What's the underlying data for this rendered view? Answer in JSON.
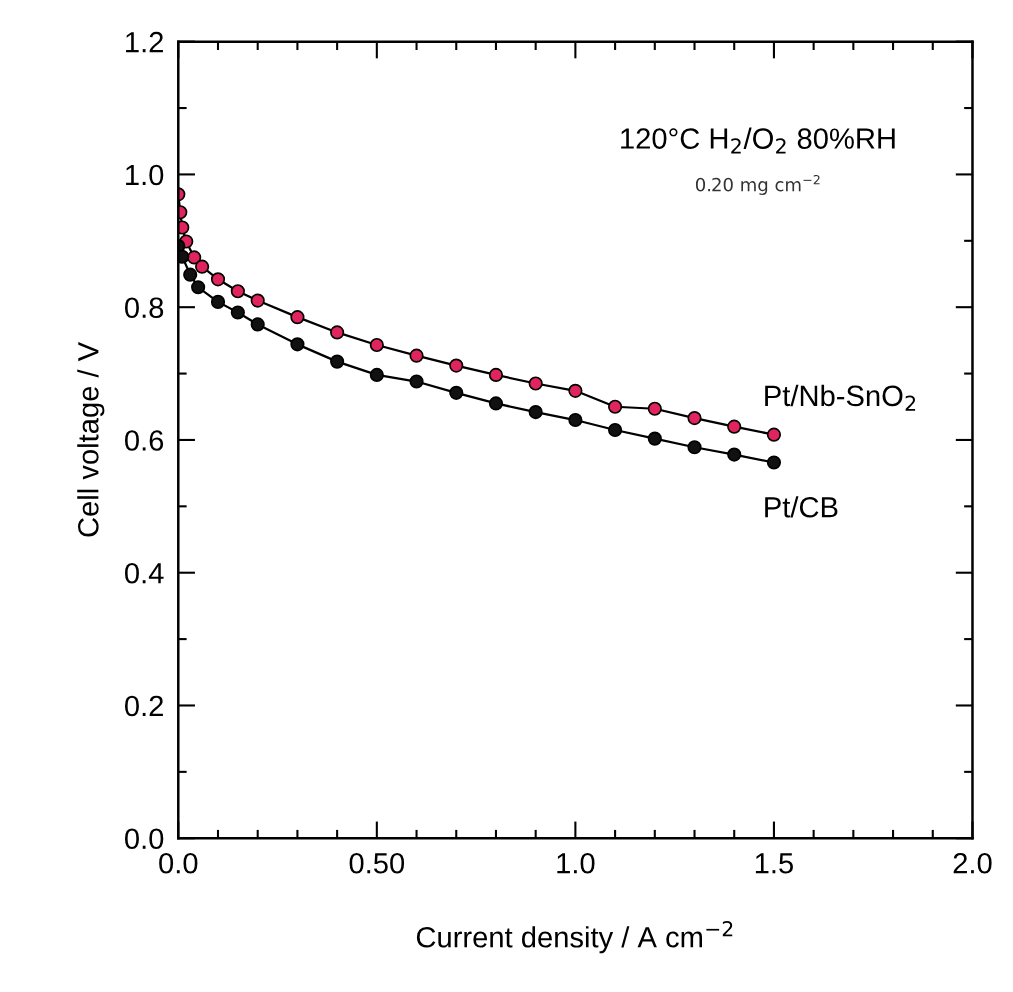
{
  "chart_data": {
    "type": "line",
    "xlabel": "Current density / A cm$^{−2}$",
    "ylabel": "Cell voltage / V",
    "xlim": [
      0,
      2.0
    ],
    "ylim": [
      0,
      1.2
    ],
    "xticks": [
      {
        "value": 0,
        "label": "0.0"
      },
      {
        "value": 0.5,
        "label": "0.50"
      },
      {
        "value": 1.0,
        "label": "1.0"
      },
      {
        "value": 1.5,
        "label": "1.5"
      },
      {
        "value": 2.0,
        "label": "2.0"
      }
    ],
    "yticks": [
      {
        "value": 0,
        "label": "0.0"
      },
      {
        "value": 0.2,
        "label": "0.2"
      },
      {
        "value": 0.4,
        "label": "0.4"
      },
      {
        "value": 0.6,
        "label": "0.6"
      },
      {
        "value": 0.8,
        "label": "0.8"
      },
      {
        "value": 1.0,
        "label": "1.0"
      },
      {
        "value": 1.2,
        "label": "1.2"
      }
    ],
    "grid": false,
    "legend": false,
    "marker": "circle",
    "line_style": "solid",
    "annotations": [
      "120°C H$_{2}$/O$_{2}$ 80%RH",
      "0.20 mg cm$^{−2}$"
    ],
    "series": [
      {
        "name": "Pt/Nb-SnO$_{2}$",
        "color": "#e0245e",
        "x": [
          0,
          0.005,
          0.01,
          0.02,
          0.04,
          0.06,
          0.1,
          0.15,
          0.2,
          0.3,
          0.4,
          0.5,
          0.6,
          0.7,
          0.8,
          0.9,
          1.0,
          1.1,
          1.2,
          1.3,
          1.4,
          1.5
        ],
        "values": [
          0.97,
          0.943,
          0.92,
          0.899,
          0.875,
          0.861,
          0.842,
          0.824,
          0.81,
          0.785,
          0.762,
          0.743,
          0.727,
          0.712,
          0.698,
          0.685,
          0.674,
          0.65,
          0.647,
          0.633,
          0.62,
          0.608
        ]
      },
      {
        "name": "Pt/CB",
        "color": "#111111",
        "x": [
          0,
          0.01,
          0.03,
          0.05,
          0.1,
          0.15,
          0.2,
          0.3,
          0.4,
          0.5,
          0.6,
          0.7,
          0.8,
          0.9,
          1.0,
          1.1,
          1.2,
          1.3,
          1.4,
          1.5
        ],
        "values": [
          0.892,
          0.876,
          0.849,
          0.83,
          0.808,
          0.792,
          0.774,
          0.744,
          0.718,
          0.698,
          0.688,
          0.671,
          0.655,
          0.642,
          0.63,
          0.615,
          0.602,
          0.589,
          0.578,
          0.566
        ]
      }
    ]
  }
}
